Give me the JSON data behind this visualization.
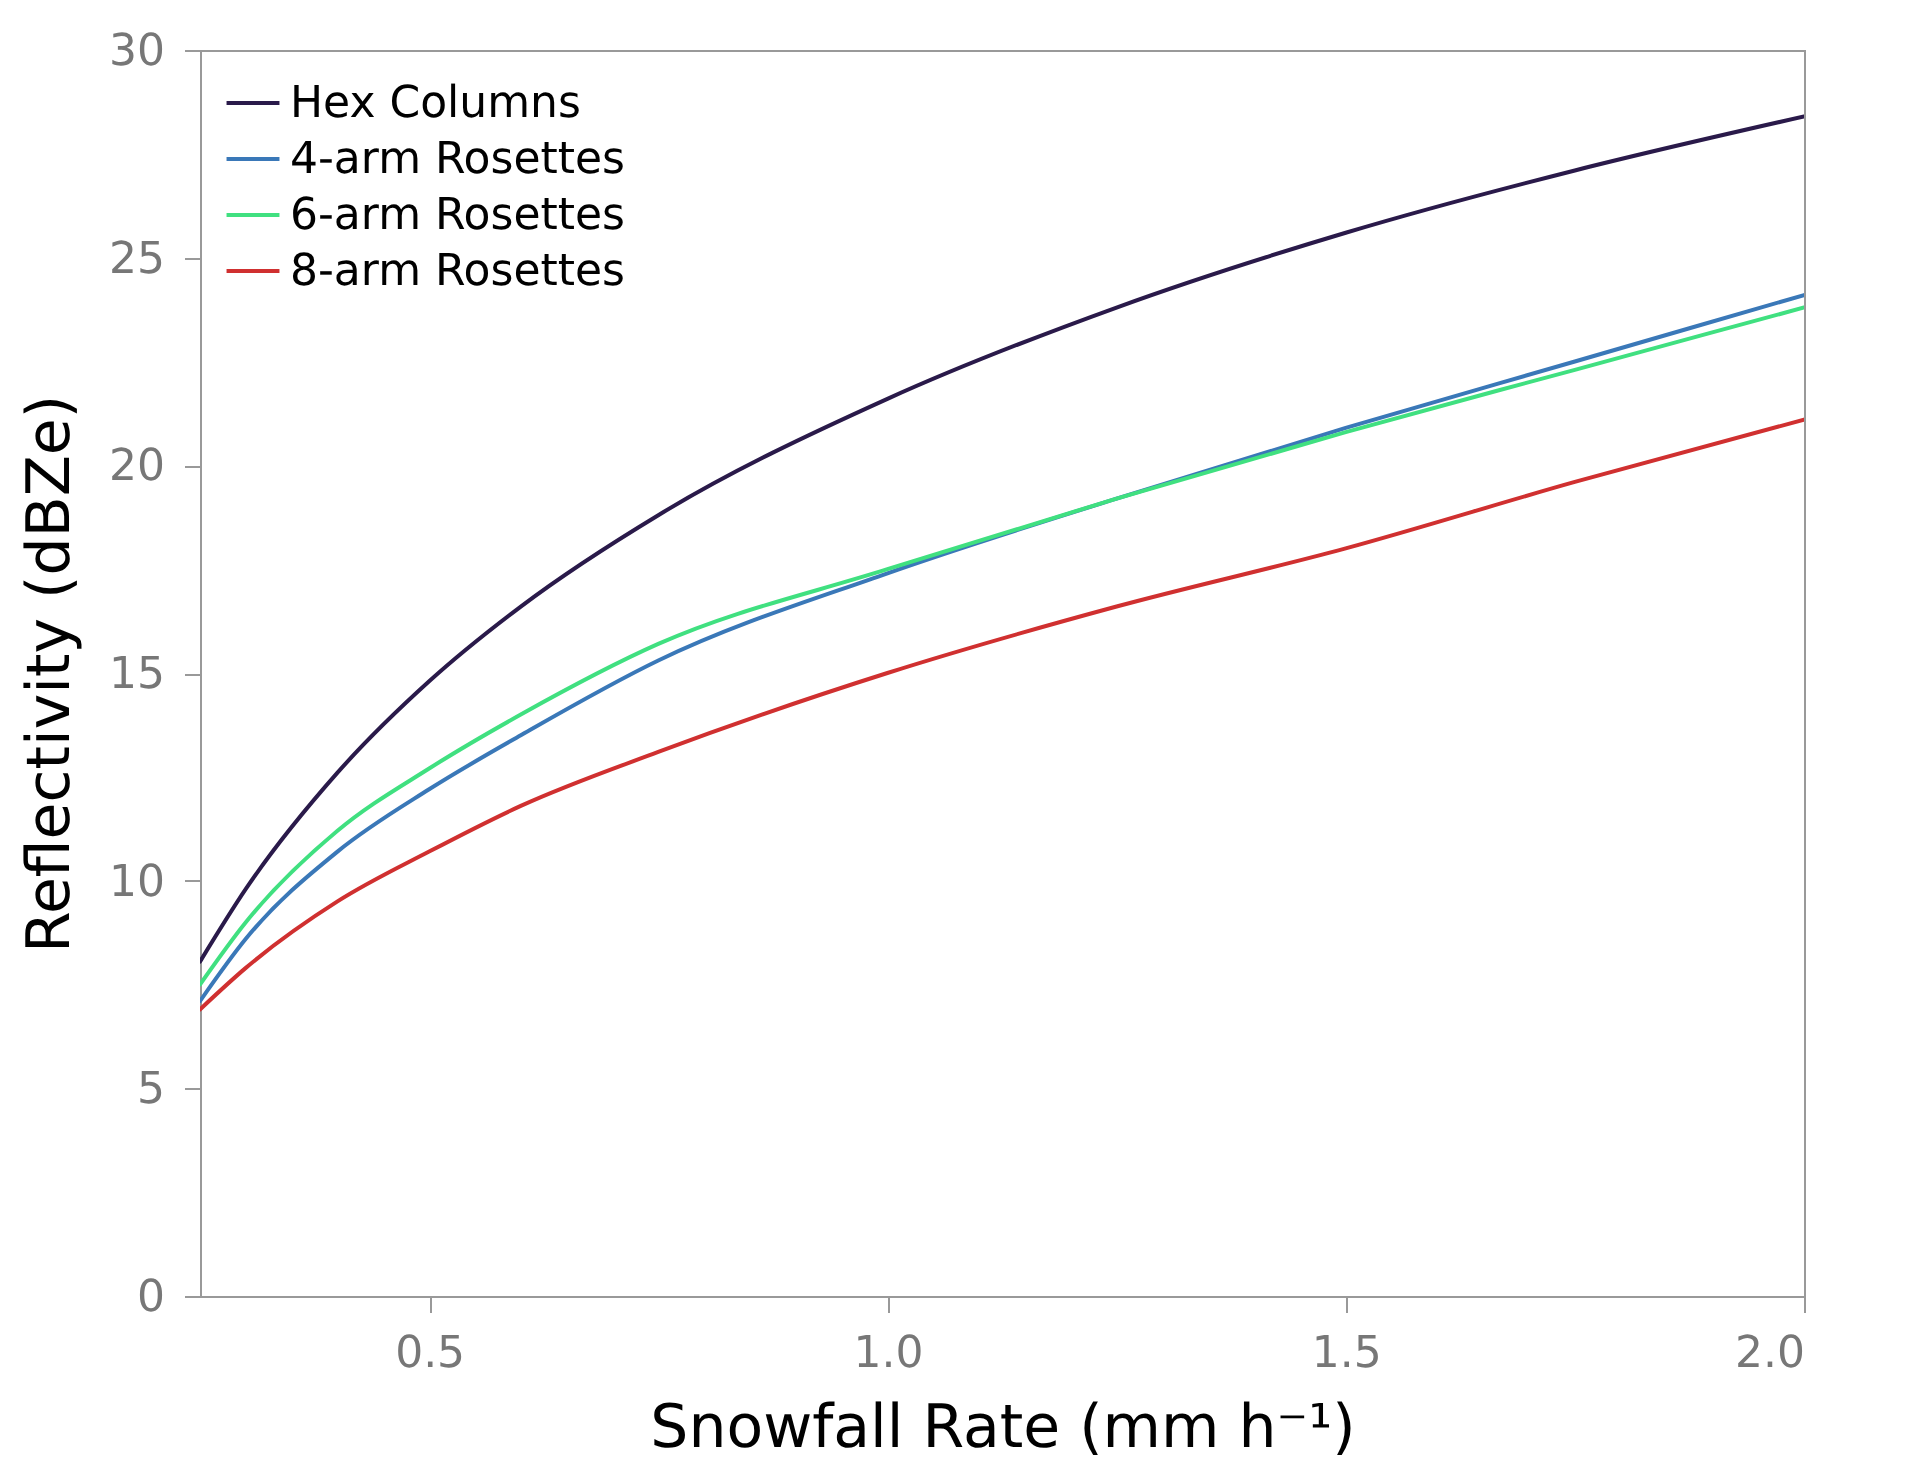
{
  "chart_data": {
    "type": "line",
    "xlabel": "Snowfall Rate (mm h⁻¹)",
    "ylabel": "Reflectivity (dBZe)",
    "x": [
      0.25,
      0.3,
      0.4,
      0.5,
      0.6,
      0.75,
      1.0,
      1.25,
      1.5,
      1.75,
      2.0
    ],
    "series": [
      {
        "name": "Hex Columns",
        "color": "#2a1a4a",
        "values": [
          8.05,
          9.8,
          12.6,
          14.8,
          16.6,
          18.8,
          21.6,
          23.8,
          25.6,
          27.1,
          28.4
        ]
      },
      {
        "name": "4-arm Rosettes",
        "color": "#3a78b8",
        "values": [
          7.1,
          8.6,
          10.7,
          12.2,
          13.5,
          15.3,
          17.4,
          19.2,
          20.9,
          22.5,
          24.1
        ]
      },
      {
        "name": "6-arm Rosettes",
        "color": "#40e080",
        "values": [
          7.5,
          9.0,
          11.2,
          12.7,
          14.0,
          15.7,
          17.5,
          19.2,
          20.8,
          22.3,
          23.8
        ]
      },
      {
        "name": "8-arm Rosettes",
        "color": "#d03030",
        "values": [
          6.9,
          7.9,
          9.5,
          10.7,
          11.8,
          13.1,
          15.0,
          16.6,
          18.0,
          19.6,
          21.1
        ]
      }
    ],
    "xlim": [
      0.25,
      2.0
    ],
    "xticks": [
      0.5,
      {
        "value": 1.0,
        "label": "1.0"
      },
      1.5,
      {
        "value": 2.0,
        "label": "2.0"
      }
    ],
    "ylim": [
      0,
      30
    ],
    "yticks": [
      0,
      5,
      10,
      15,
      20,
      25,
      30
    ],
    "legend": "top left",
    "grid": false,
    "marker": "none",
    "line_style": "solid"
  }
}
